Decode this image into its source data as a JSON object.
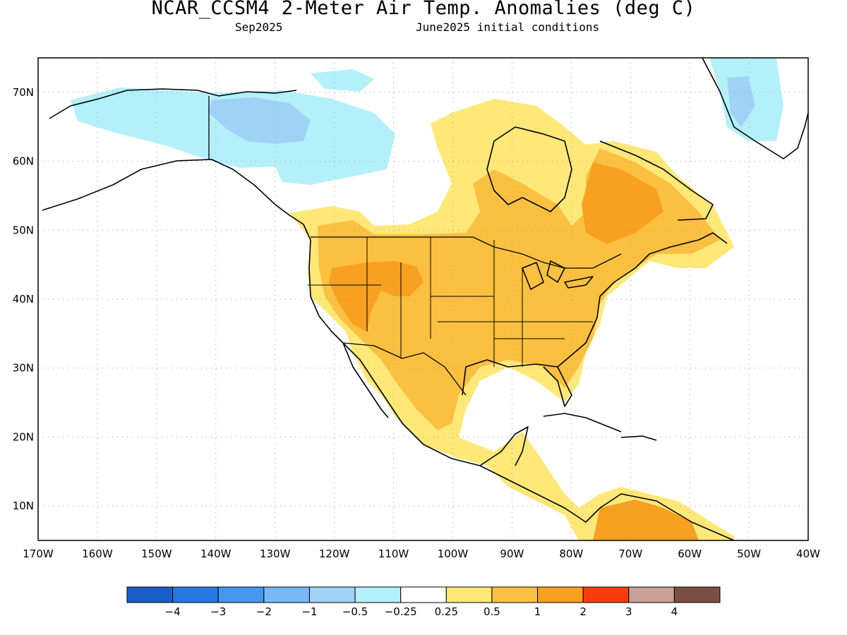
{
  "title": "NCAR_CCSM4 2-Meter Air Temp. Anomalies (deg C)",
  "subtitle_left": "Sep2025",
  "subtitle_right": "June2025 initial conditions",
  "map": {
    "lon_range": [
      -170,
      -40
    ],
    "lat_range": [
      5,
      75
    ],
    "lon_ticks": [
      {
        "lon": -170,
        "label": "170W"
      },
      {
        "lon": -160,
        "label": "160W"
      },
      {
        "lon": -150,
        "label": "150W"
      },
      {
        "lon": -140,
        "label": "140W"
      },
      {
        "lon": -130,
        "label": "130W"
      },
      {
        "lon": -120,
        "label": "120W"
      },
      {
        "lon": -110,
        "label": "110W"
      },
      {
        "lon": -100,
        "label": "100W"
      },
      {
        "lon": -90,
        "label": "90W"
      },
      {
        "lon": -80,
        "label": "80W"
      },
      {
        "lon": -70,
        "label": "70W"
      },
      {
        "lon": -60,
        "label": "60W"
      },
      {
        "lon": -50,
        "label": "50W"
      },
      {
        "lon": -40,
        "label": "40W"
      }
    ],
    "lat_ticks": [
      {
        "lat": 10,
        "label": "10N"
      },
      {
        "lat": 20,
        "label": "20N"
      },
      {
        "lat": 30,
        "label": "30N"
      },
      {
        "lat": 40,
        "label": "40N"
      },
      {
        "lat": 50,
        "label": "50N"
      },
      {
        "lat": 60,
        "label": "60N"
      },
      {
        "lat": 70,
        "label": "70N"
      }
    ],
    "grid": "dotted"
  },
  "colorbar": {
    "colors": [
      "#1a5fc8",
      "#2878e0",
      "#4696ee",
      "#78b8f4",
      "#a0d2f8",
      "#b4f0fa",
      "#ffffff",
      "#ffe878",
      "#fcc040",
      "#f8a020",
      "#f83c10",
      "#c8a096",
      "#7a5044"
    ],
    "labels": [
      "−4",
      "−3",
      "−2",
      "−1",
      "−0.5",
      "−0.25",
      "0.25",
      "0.5",
      "1",
      "2",
      "3",
      "4"
    ]
  },
  "palette": {
    "blue_light": "#b4f0fa",
    "blue_mid": "#a0d2f8",
    "yellow": "#ffe878",
    "orange_light": "#fcc040",
    "orange": "#f8a020",
    "coast": "#000000"
  }
}
